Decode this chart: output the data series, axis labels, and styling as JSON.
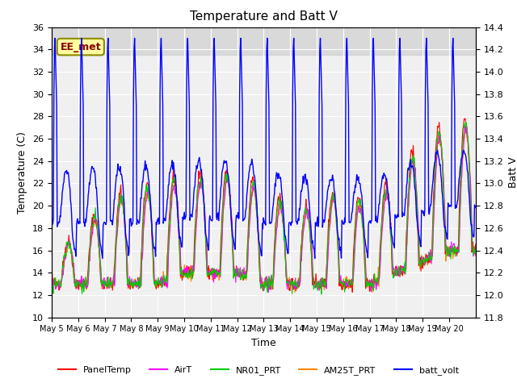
{
  "title": "Temperature and Batt V",
  "xlabel": "Time",
  "ylabel_left": "Temperature (C)",
  "ylabel_right": "Batt V",
  "ylim_left": [
    10,
    36
  ],
  "ylim_right": [
    11.8,
    14.4
  ],
  "yticks_left": [
    10,
    12,
    14,
    16,
    18,
    20,
    22,
    24,
    26,
    28,
    30,
    32,
    34,
    36
  ],
  "yticks_right": [
    11.8,
    12.0,
    12.2,
    12.4,
    12.6,
    12.8,
    13.0,
    13.2,
    13.4,
    13.6,
    13.8,
    14.0,
    14.2,
    14.4
  ],
  "x_tick_labels": [
    "May 5",
    "May 6",
    "May 7",
    "May 8",
    "May 9",
    "May 10",
    "May 11",
    "May 12",
    "May 13",
    "May 14",
    "May 15",
    "May 16",
    "May 17",
    "May 18",
    "May 19",
    "May 20"
  ],
  "annotation_text": "EE_met",
  "annotation_color": "#8B0000",
  "annotation_bg": "#FFFFA0",
  "shaded_region": [
    33.5,
    36
  ],
  "series_colors": {
    "PanelTemp": "#FF0000",
    "AirT": "#FF00FF",
    "NR01_PRT": "#00CC00",
    "AM25T_PRT": "#FF8800",
    "batt_volt": "#0000FF"
  },
  "legend_labels": [
    "PanelTemp",
    "AirT",
    "NR01_PRT",
    "AM25T_PRT",
    "batt_volt"
  ],
  "n_days": 16,
  "background_color": "#FFFFFF",
  "plot_bg_color": "#F0F0F0"
}
